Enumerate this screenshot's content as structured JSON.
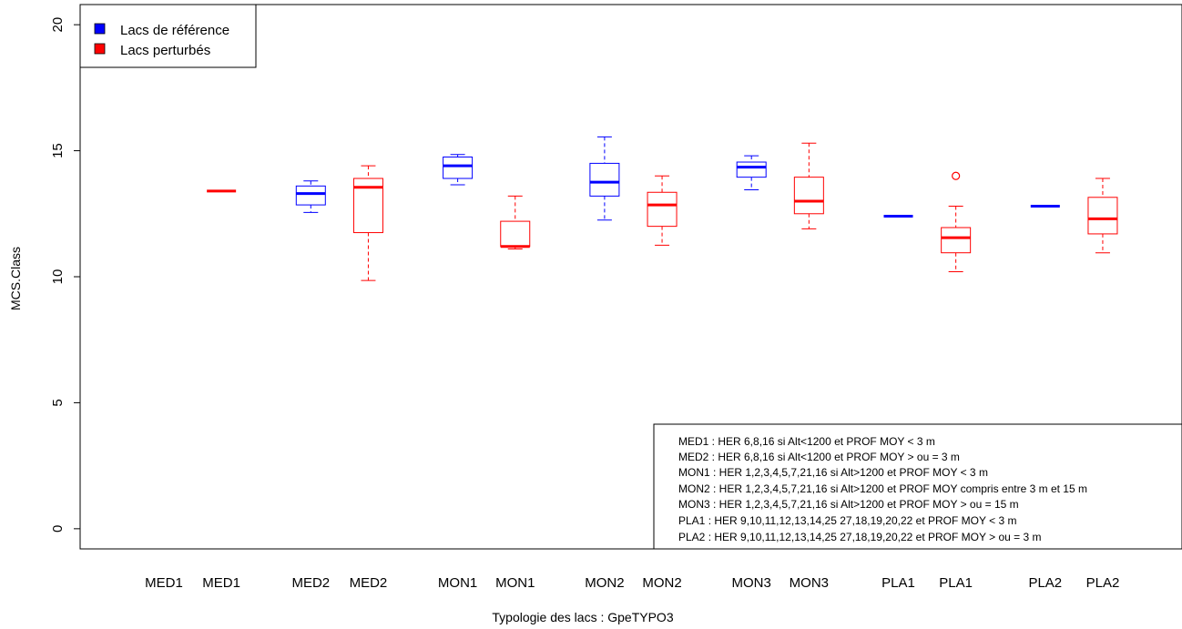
{
  "chart_data": {
    "type": "box",
    "xlabel": "Typologie des lacs : GpeTYPO3",
    "ylabel": "MCS.Class",
    "ylim": [
      -0.8,
      20.8
    ],
    "yticks": [
      0,
      5,
      10,
      15,
      20
    ],
    "colors": {
      "reference": "#0000ff",
      "perturbed": "#ff0000"
    },
    "legend": {
      "position": "top-left",
      "entries": [
        {
          "label": "Lacs de référence",
          "color": "#0000ff"
        },
        {
          "label": "Lacs perturbés",
          "color": "#ff0000"
        }
      ]
    },
    "categories": [
      "MED1",
      "MED1",
      "MED2",
      "MED2",
      "MON1",
      "MON1",
      "MON2",
      "MON2",
      "MON3",
      "MON3",
      "PLA1",
      "PLA1",
      "PLA2",
      "PLA2"
    ],
    "boxes": [
      null,
      {
        "group": "perturbed",
        "min": 13.4,
        "q1": 13.4,
        "median": 13.4,
        "q3": 13.4,
        "max": 13.4,
        "outliers": []
      },
      {
        "group": "reference",
        "min": 12.55,
        "q1": 12.85,
        "median": 13.3,
        "q3": 13.6,
        "max": 13.8,
        "outliers": []
      },
      {
        "group": "perturbed",
        "min": 9.85,
        "q1": 11.75,
        "median": 13.55,
        "q3": 13.9,
        "max": 14.4,
        "outliers": []
      },
      {
        "group": "reference",
        "min": 13.65,
        "q1": 13.9,
        "median": 14.4,
        "q3": 14.75,
        "max": 14.85,
        "outliers": []
      },
      {
        "group": "perturbed",
        "min": 11.1,
        "q1": 11.2,
        "median": 11.2,
        "q3": 12.2,
        "max": 13.2,
        "outliers": []
      },
      {
        "group": "reference",
        "min": 12.25,
        "q1": 13.2,
        "median": 13.75,
        "q3": 14.5,
        "max": 15.55,
        "outliers": []
      },
      {
        "group": "perturbed",
        "min": 11.25,
        "q1": 12.0,
        "median": 12.85,
        "q3": 13.35,
        "max": 14.0,
        "outliers": []
      },
      {
        "group": "reference",
        "min": 13.45,
        "q1": 13.95,
        "median": 14.35,
        "q3": 14.55,
        "max": 14.8,
        "outliers": []
      },
      {
        "group": "perturbed",
        "min": 11.9,
        "q1": 12.5,
        "median": 13.0,
        "q3": 13.95,
        "max": 15.3,
        "outliers": []
      },
      {
        "group": "reference",
        "min": 12.4,
        "q1": 12.4,
        "median": 12.4,
        "q3": 12.4,
        "max": 12.4,
        "outliers": []
      },
      {
        "group": "perturbed",
        "min": 10.2,
        "q1": 10.95,
        "median": 11.55,
        "q3": 11.95,
        "max": 12.8,
        "outliers": [
          14.0
        ]
      },
      {
        "group": "reference",
        "min": 12.8,
        "q1": 12.8,
        "median": 12.8,
        "q3": 12.8,
        "max": 12.8,
        "outliers": []
      },
      {
        "group": "perturbed",
        "min": 10.95,
        "q1": 11.7,
        "median": 12.3,
        "q3": 13.15,
        "max": 13.9,
        "outliers": []
      }
    ],
    "annotations": [
      "MED1 : HER 6,8,16 si Alt<1200 et PROF MOY < 3 m",
      "MED2 : HER 6,8,16 si Alt<1200 et PROF MOY > ou = 3 m",
      "MON1 : HER 1,2,3,4,5,7,21,16 si Alt>1200 et PROF MOY < 3 m",
      "MON2 : HER 1,2,3,4,5,7,21,16 si Alt>1200 et PROF MOY compris entre 3 m et 15 m",
      "MON3 : HER 1,2,3,4,5,7,21,16 si Alt>1200 et PROF MOY > ou = 15 m",
      "PLA1 : HER 9,10,11,12,13,14,25 27,18,19,20,22 et PROF MOY < 3 m",
      "PLA2 : HER 9,10,11,12,13,14,25 27,18,19,20,22 et PROF MOY > ou = 3 m"
    ]
  }
}
